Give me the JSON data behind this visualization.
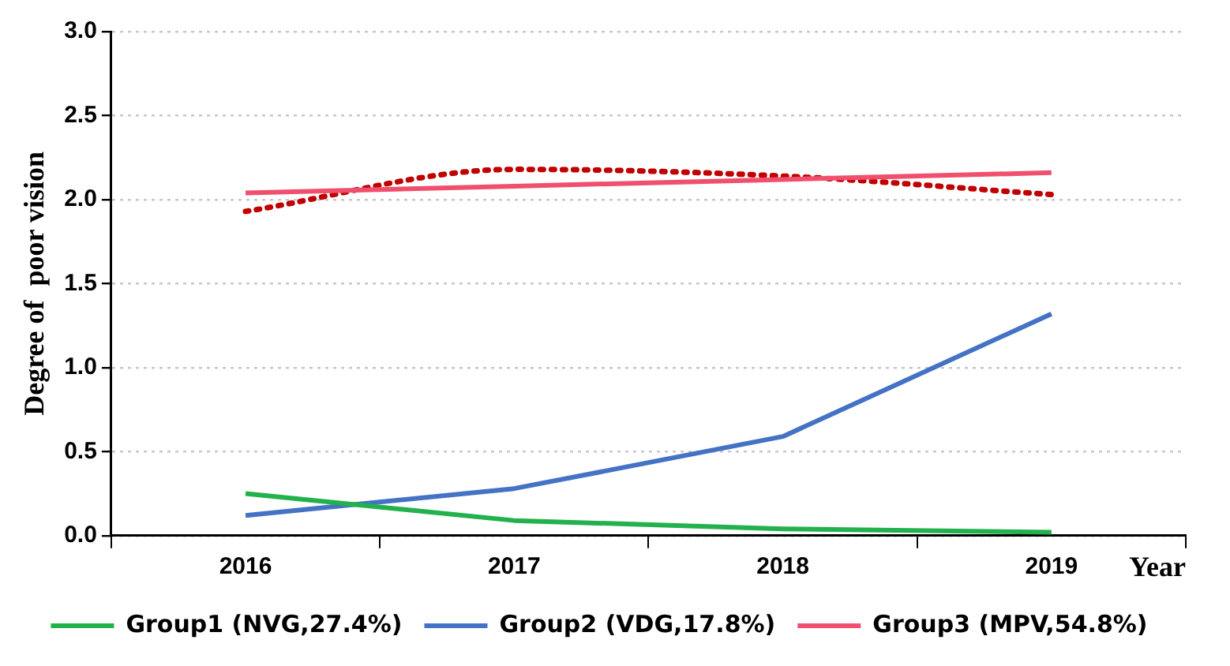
{
  "chart_data": {
    "type": "line",
    "ylabel": "Degree of  poor vision",
    "xlabel": "Year",
    "categories": [
      "2016",
      "2017",
      "2018",
      "2019"
    ],
    "series": [
      {
        "name": "Group1 (NVG,27.4%)",
        "color": "#22b14c",
        "values": [
          0.25,
          0.09,
          0.04,
          0.02
        ]
      },
      {
        "name": "Group2 (VDG,17.8%)",
        "color": "#4472c4",
        "values": [
          0.12,
          0.28,
          0.59,
          1.32
        ]
      },
      {
        "name": "Group3 (MPV,54.8%)",
        "color": "#f0506e",
        "values": [
          2.04,
          2.08,
          2.12,
          2.16
        ]
      },
      {
        "color": "#c00000",
        "values": [
          1.93,
          2.18,
          2.14,
          2.03
        ],
        "line_style": "dotted"
      }
    ],
    "ylim": [
      0,
      3.0
    ],
    "yticks": [
      {
        "value": 0,
        "label": "0.0"
      },
      {
        "value": 0.5,
        "label": "0.5"
      },
      {
        "value": 1,
        "label": "1.0"
      },
      {
        "value": 1.5,
        "label": "1.5"
      },
      {
        "value": 2,
        "label": "2.0"
      },
      {
        "value": 2.5,
        "label": "2.5"
      },
      {
        "value": 3,
        "label": "3.0"
      }
    ],
    "grid": "y",
    "legend": "bottom",
    "marker": "none",
    "line_style": "solid"
  }
}
